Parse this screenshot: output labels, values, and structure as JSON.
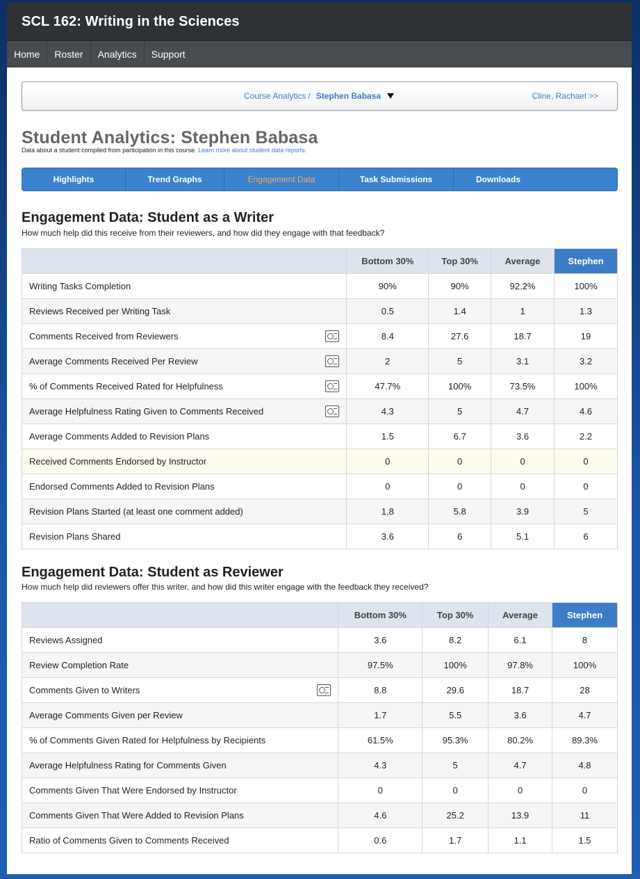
{
  "app": {
    "title": "SCL 162: Writing in the Sciences"
  },
  "nav": [
    "Home",
    "Roster",
    "Analytics",
    "Support"
  ],
  "breadcrumb": {
    "parent": "Course Analytics",
    "separator": "/",
    "current": "Stephen Babasa",
    "next": "Cline, Rachael >>"
  },
  "page": {
    "title": "Student Analytics: Stephen Babasa",
    "subtitle": "Data about a student compiled from participation in this course.",
    "subtitle_link": "Learn more about student data reports."
  },
  "tabs": [
    "Highlights",
    "Trend Graphs",
    "Engagement Data",
    "Task Submissions",
    "Downloads"
  ],
  "active_tab": "Engagement Data",
  "writer": {
    "title": "Engagement Data: Student as a Writer",
    "subtitle": "How much help did this receive from their reviewers, and how did they engage with that feedback?",
    "columns": [
      "Bottom 30%",
      "Top 30%",
      "Average",
      "Stephen"
    ],
    "rows": [
      {
        "label": "Writing Tasks Completion",
        "icon": false,
        "values": [
          "90%",
          "90%",
          "92.2%",
          "100%"
        ]
      },
      {
        "label": "Reviews Received per Writing Task",
        "icon": false,
        "values": [
          "0.5",
          "1.4",
          "1",
          "1.3"
        ]
      },
      {
        "label": "Comments Received from Reviewers",
        "icon": true,
        "values": [
          "8.4",
          "27.6",
          "18.7",
          "19"
        ]
      },
      {
        "label": "Average Comments Received Per Review",
        "icon": true,
        "values": [
          "2",
          "5",
          "3.1",
          "3.2"
        ]
      },
      {
        "label": "% of Comments Received Rated for Helpfulness",
        "icon": true,
        "values": [
          "47.7%",
          "100%",
          "73.5%",
          "100%"
        ]
      },
      {
        "label": "Average Helpfulness Rating Given to Comments Received",
        "icon": true,
        "values": [
          "4.3",
          "5",
          "4.7",
          "4.6"
        ]
      },
      {
        "label": "Average Comments Added to Revision Plans",
        "icon": false,
        "values": [
          "1.5",
          "6.7",
          "3.6",
          "2.2"
        ]
      },
      {
        "label": "Received Comments Endorsed by Instructor",
        "icon": false,
        "highlight": true,
        "values": [
          "0",
          "0",
          "0",
          "0"
        ]
      },
      {
        "label": "Endorsed Comments Added to Revision Plans",
        "icon": false,
        "values": [
          "0",
          "0",
          "0",
          "0"
        ]
      },
      {
        "label": "Revision Plans Started (at least one comment added)",
        "icon": false,
        "values": [
          "1.8",
          "5.8",
          "3.9",
          "5"
        ]
      },
      {
        "label": "Revision Plans Shared",
        "icon": false,
        "values": [
          "3.6",
          "6",
          "5.1",
          "6"
        ]
      }
    ]
  },
  "reviewer": {
    "title": "Engagement Data: Student as Reviewer",
    "subtitle": "How much help did reviewers offer this writer, and how did this writer engage with the feedback they received?",
    "columns": [
      "Bottom 30%",
      "Top 30%",
      "Average",
      "Stephen"
    ],
    "rows": [
      {
        "label": "Reviews Assigned",
        "icon": false,
        "values": [
          "3.6",
          "8.2",
          "6.1",
          "8"
        ]
      },
      {
        "label": "Review Completion Rate",
        "icon": false,
        "values": [
          "97.5%",
          "100%",
          "97.8%",
          "100%"
        ]
      },
      {
        "label": "Comments Given to Writers",
        "icon": true,
        "values": [
          "8.8",
          "29.6",
          "18.7",
          "28"
        ]
      },
      {
        "label": "Average Comments Given per Review",
        "icon": false,
        "values": [
          "1.7",
          "5.5",
          "3.6",
          "4.7"
        ]
      },
      {
        "label": "% of Comments Given Rated for Helpfulness by Recipients",
        "icon": false,
        "values": [
          "61.5%",
          "95.3%",
          "80.2%",
          "89.3%"
        ]
      },
      {
        "label": "Average Helpfulness Rating for Comments Given",
        "icon": false,
        "values": [
          "4.3",
          "5",
          "4.7",
          "4.8"
        ]
      },
      {
        "label": "Comments Given That Were Endorsed by Instructor",
        "icon": false,
        "values": [
          "0",
          "0",
          "0",
          "0"
        ]
      },
      {
        "label": "Comments Given That Were Added to Revision Plans",
        "icon": false,
        "values": [
          "4.6",
          "25.2",
          "13.9",
          "11"
        ]
      },
      {
        "label": "Ratio of Comments Given to Comments Received",
        "icon": false,
        "values": [
          "0.6",
          "1.7",
          "1.1",
          "1.5"
        ]
      }
    ]
  },
  "colors": {
    "header_bg": "#2e3235",
    "nav_bg": "#474c50",
    "accent_blue": "#3d7cc6",
    "active_tab_text": "#f0a868",
    "table_header_bg": "#dde4ee",
    "highlight_row_bg": "#fdfbee"
  }
}
